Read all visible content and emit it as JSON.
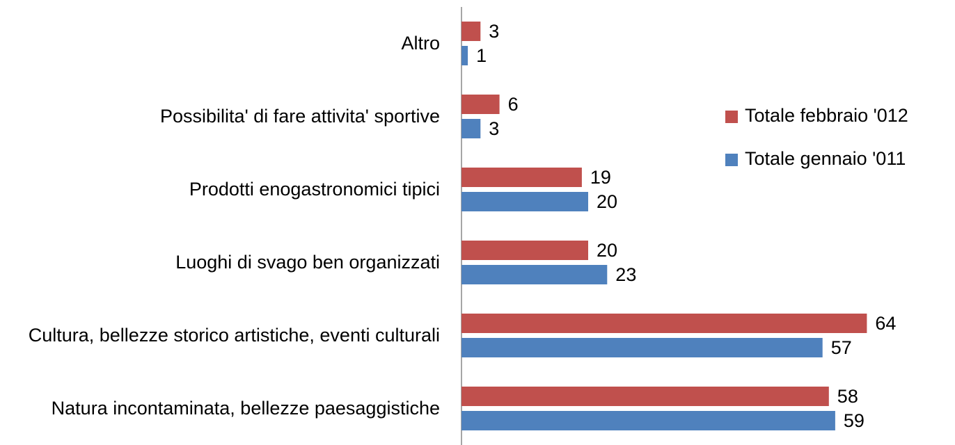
{
  "chart_data": {
    "type": "hbar",
    "categories": [
      "Altro",
      "Possibilita' di fare attivita' sportive",
      "Prodotti enogastronomici tipici",
      "Luoghi di svago ben organizzati",
      "Cultura, bellezze storico artistiche, eventi culturali",
      "Natura incontaminata, bellezze paesaggistiche"
    ],
    "series": [
      {
        "name": "Totale febbraio '012",
        "color": "#c0504d",
        "values": [
          3,
          6,
          19,
          20,
          64,
          58
        ]
      },
      {
        "name": "Totale gennaio '011",
        "color": "#4f81bd",
        "values": [
          1,
          3,
          20,
          23,
          57,
          59
        ]
      }
    ],
    "legend": "right"
  }
}
